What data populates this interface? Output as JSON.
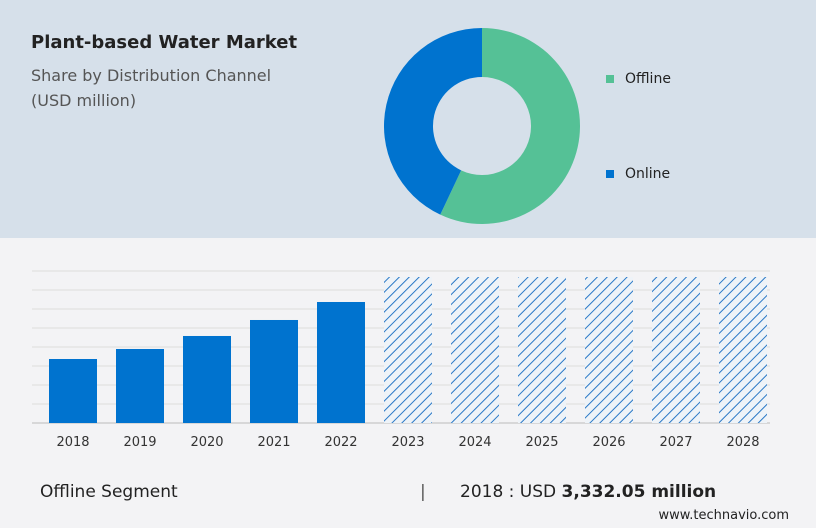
{
  "header": {
    "title": "Plant-based Water Market",
    "subtitle1": "Share by Distribution Channel",
    "subtitle2": "(USD million)"
  },
  "chart_data": [
    {
      "type": "pie",
      "donut": true,
      "categories": [
        "Offline",
        "Online"
      ],
      "values": [
        57,
        43
      ],
      "colors": [
        "#55c196",
        "#0073cf"
      ],
      "legend_placement": "right"
    },
    {
      "type": "bar",
      "categories": [
        "2018",
        "2019",
        "2020",
        "2021",
        "2022",
        "2023",
        "2024",
        "2025",
        "2026",
        "2027",
        "2028"
      ],
      "values": [
        3332.05,
        3853,
        4530,
        5363,
        6300,
        null,
        null,
        null,
        null,
        null,
        null
      ],
      "forecast_from": "2023",
      "bar_color": "#0073cf",
      "forecast_pattern": "diagonal-hatch",
      "grid": true
    }
  ],
  "footer": {
    "segment": "Offline Segment",
    "separator": "|",
    "year_label": "2018 : USD ",
    "value": "3,332.05 million",
    "site": "www.technavio.com"
  }
}
